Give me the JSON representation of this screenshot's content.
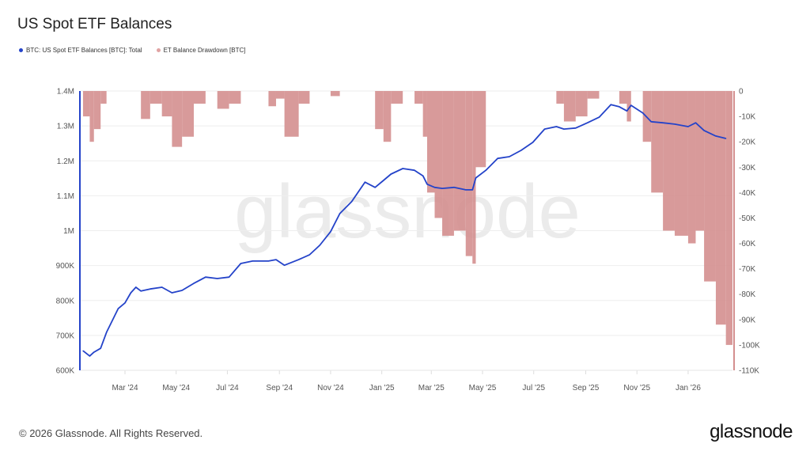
{
  "title": "US Spot ETF Balances",
  "footer": "© 2026 Glassnode. All Rights Reserved.",
  "logo": "glassnode",
  "watermark": "glassnode",
  "chart_data": {
    "type": "line",
    "title": "US Spot ETF Balances",
    "legend_position": "top-left",
    "grid": true,
    "x_ticks": [
      "Mar '24",
      "May '24",
      "Jul '24",
      "Sep '24",
      "Nov '24",
      "Jan '25",
      "Mar '25",
      "May '25",
      "Jul '25",
      "Sep '25",
      "Nov '25",
      "Jan '26"
    ],
    "x_tick_dates": [
      "2024-03-01",
      "2024-05-01",
      "2024-07-01",
      "2024-09-01",
      "2024-11-01",
      "2025-01-01",
      "2025-03-01",
      "2025-05-01",
      "2025-07-01",
      "2025-09-01",
      "2025-11-01",
      "2026-01-01"
    ],
    "y_left": {
      "ticks": [
        "600K",
        "700K",
        "800K",
        "900K",
        "1M",
        "1.1M",
        "1.2M",
        "1.3M",
        "1.4M"
      ],
      "range": [
        600000,
        1400000
      ]
    },
    "y_right": {
      "ticks": [
        "-110K",
        "-100K",
        "-90K",
        "-80K",
        "-70K",
        "-60K",
        "-50K",
        "-40K",
        "-30K",
        "-20K",
        "-10K",
        "0"
      ],
      "range": [
        -110000,
        0
      ]
    },
    "series": [
      {
        "name": "BTC: US Spot ETF Balances [BTC]: Total",
        "color": "#2443c9",
        "axis": "left",
        "kind": "line",
        "x": [
          "2024-01-11",
          "2024-01-19",
          "2024-01-24",
          "2024-02-01",
          "2024-02-08",
          "2024-02-15",
          "2024-02-22",
          "2024-03-01",
          "2024-03-08",
          "2024-03-14",
          "2024-03-20",
          "2024-03-31",
          "2024-04-14",
          "2024-04-26",
          "2024-05-08",
          "2024-05-22",
          "2024-06-05",
          "2024-06-19",
          "2024-07-03",
          "2024-07-17",
          "2024-07-31",
          "2024-08-19",
          "2024-08-28",
          "2024-09-07",
          "2024-09-24",
          "2024-10-07",
          "2024-10-19",
          "2024-11-01",
          "2024-11-12",
          "2024-11-26",
          "2024-12-12",
          "2024-12-24",
          "2025-01-03",
          "2025-01-12",
          "2025-01-26",
          "2025-02-09",
          "2025-02-19",
          "2025-02-24",
          "2025-03-05",
          "2025-03-14",
          "2025-03-28",
          "2025-04-11",
          "2025-04-19",
          "2025-04-23",
          "2025-05-05",
          "2025-05-19",
          "2025-06-02",
          "2025-06-16",
          "2025-06-30",
          "2025-07-14",
          "2025-07-28",
          "2025-08-06",
          "2025-08-20",
          "2025-09-03",
          "2025-09-17",
          "2025-10-01",
          "2025-10-11",
          "2025-10-20",
          "2025-10-25",
          "2025-11-08",
          "2025-11-18",
          "2025-12-02",
          "2025-12-16",
          "2026-01-01",
          "2026-01-10",
          "2026-01-20",
          "2026-02-03",
          "2026-02-15"
        ],
        "values": [
          656000,
          641000,
          652000,
          663000,
          709000,
          743000,
          777000,
          793000,
          822000,
          838000,
          827000,
          833000,
          838000,
          822000,
          829000,
          849000,
          867000,
          863000,
          867000,
          906000,
          913000,
          913000,
          917000,
          901000,
          917000,
          931000,
          958000,
          997000,
          1049000,
          1083000,
          1139000,
          1124000,
          1144000,
          1162000,
          1178000,
          1173000,
          1157000,
          1133000,
          1124000,
          1121000,
          1124000,
          1117000,
          1117000,
          1151000,
          1173000,
          1207000,
          1212000,
          1230000,
          1253000,
          1291000,
          1298000,
          1291000,
          1294000,
          1309000,
          1325000,
          1361000,
          1355000,
          1343000,
          1359000,
          1337000,
          1312000,
          1309000,
          1305000,
          1298000,
          1309000,
          1287000,
          1271000,
          1264000
        ]
      },
      {
        "name": "ET Balance Drawdown [BTC]",
        "color": "#d48f8f",
        "axis": "right",
        "kind": "area",
        "values": [
          -10000,
          -20000,
          -15000,
          -5000,
          0,
          0,
          0,
          0,
          0,
          0,
          -11000,
          -5000,
          -10000,
          -22000,
          -18000,
          -5000,
          0,
          -7000,
          -5000,
          0,
          0,
          -6000,
          -3000,
          -18000,
          -5000,
          0,
          0,
          -2000,
          0,
          0,
          0,
          -15000,
          -20000,
          -5000,
          0,
          -5000,
          -18000,
          -40000,
          -50000,
          -57000,
          -55000,
          -65000,
          -68000,
          -30000,
          0,
          0,
          0,
          0,
          0,
          0,
          -5000,
          -12000,
          -10000,
          -3000,
          0,
          0,
          -5000,
          -12000,
          0,
          -20000,
          -40000,
          -55000,
          -57000,
          -60000,
          -55000,
          -75000,
          -92000,
          -100000
        ]
      }
    ]
  }
}
